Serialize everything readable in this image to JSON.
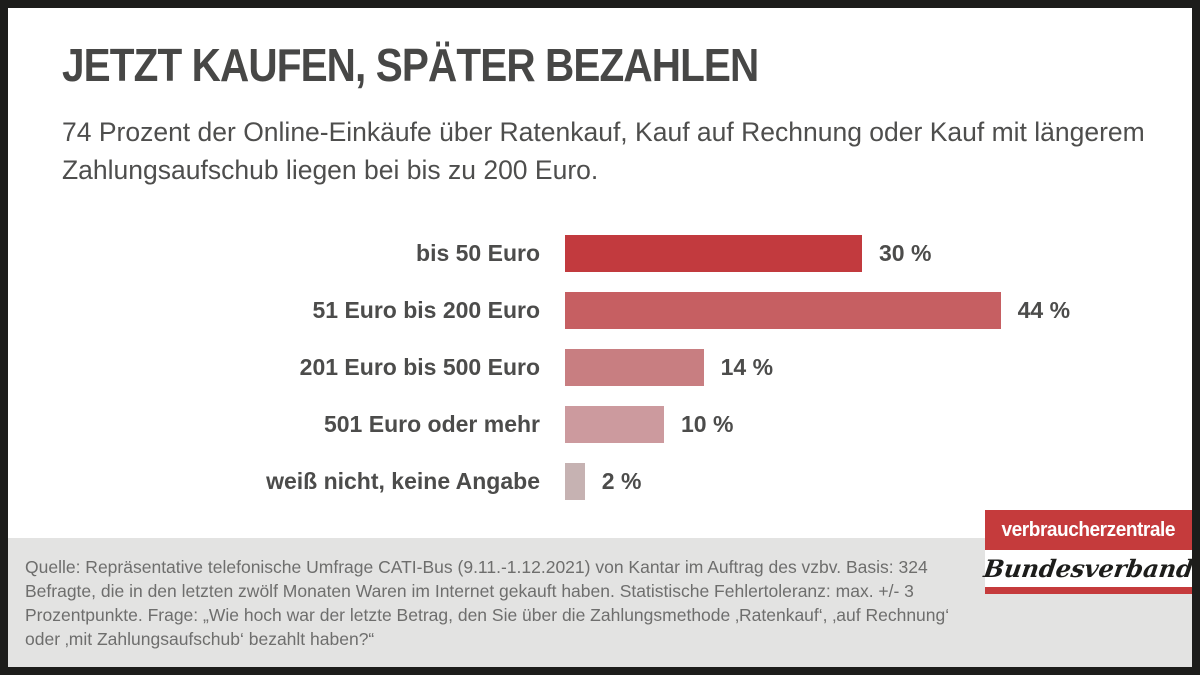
{
  "header": {
    "title": "JETZT KAUFEN, SPÄTER BEZAHLEN",
    "subtitle": "74 Prozent der Online-Einkäufe über Ratenkauf, Kauf auf Rechnung oder Kauf mit längerem Zahlungsaufschub liegen bei bis zu 200 Euro."
  },
  "chart_data": {
    "type": "bar",
    "orientation": "horizontal",
    "categories": [
      "bis 50 Euro",
      "51 Euro bis 200 Euro",
      "201 Euro bis 500 Euro",
      "501 Euro oder mehr",
      "weiß nicht, keine Angabe"
    ],
    "values": [
      30,
      44,
      14,
      10,
      2
    ],
    "value_labels": [
      "30 %",
      "44 %",
      "14 %",
      "10 %",
      "2 %"
    ],
    "bar_colors": [
      "#c23a3e",
      "#c65f62",
      "#c87e81",
      "#cc9a9e",
      "#c6b2b2"
    ],
    "unit": "%",
    "xlim": [
      0,
      44
    ],
    "grid": false,
    "legend": false,
    "title": "JETZT KAUFEN, SPÄTER BEZAHLEN"
  },
  "footer": {
    "source_text": "Quelle: Repräsentative telefonische Umfrage CATI-Bus (9.11.-1.12.2021) von Kantar im Auftrag des vzbv. Basis: 324 Befragte, die in den letzten zwölf Monaten Waren im Internet gekauft haben. Statistische Fehlertoleranz: max. +/- 3 Prozentpunkte. Frage: „Wie hoch war der letzte Betrag, den Sie über die Zahlungsmethode ‚Ratenkauf‘, ‚auf Rechnung‘ oder ‚mit Zahlungsaufschub‘ bezahlt haben?“"
  },
  "logo": {
    "line1": "verbraucherzentrale",
    "line2": "Bundesverband",
    "brand_red": "#c53b3c"
  },
  "colors": {
    "frame_border": "#1d1d1b",
    "background": "#ffffff",
    "title_text": "#474746",
    "body_text": "#4e4e4d",
    "footer_background": "#e3e3e2",
    "footer_text": "#6e6e6d"
  }
}
